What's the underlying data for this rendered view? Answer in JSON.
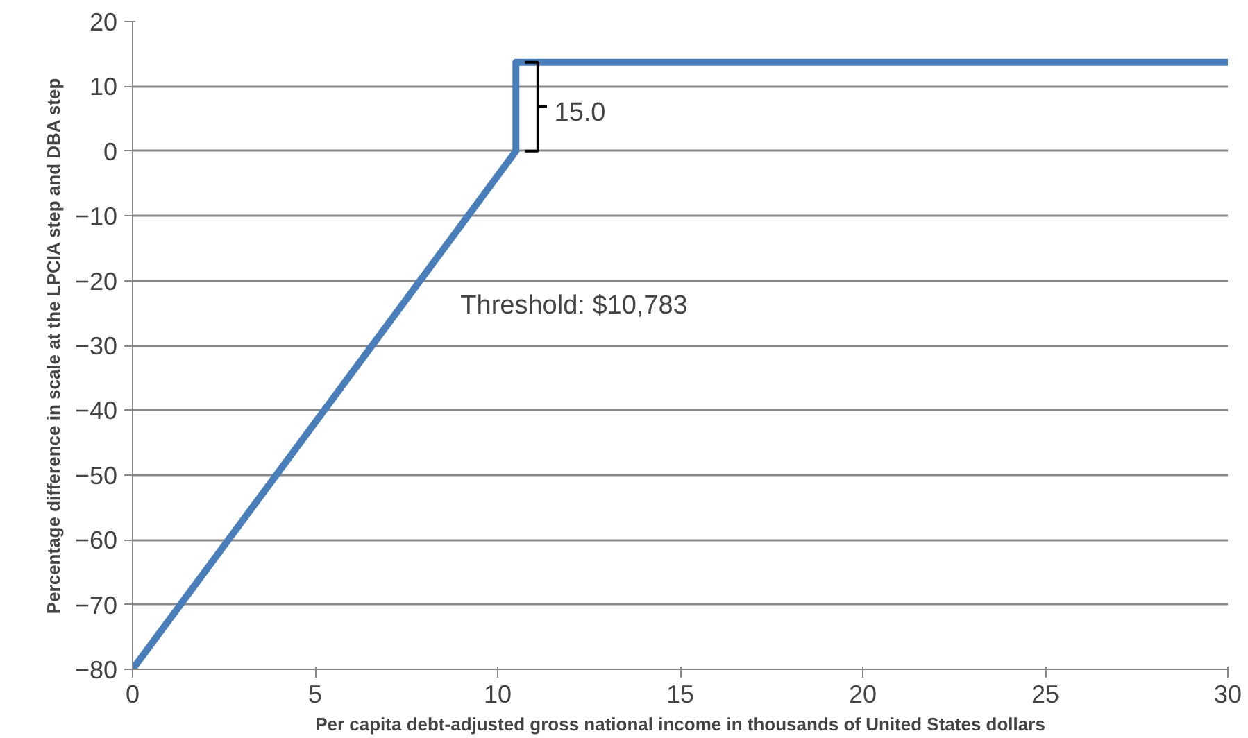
{
  "chart_data": {
    "type": "line",
    "xlabel": "Per capita debt-adjusted gross national income in thousands of United States dollars",
    "ylabel": "Percentage difference in scale at the LPCIA step and DBA step",
    "series": [
      {
        "color": "#4a7ebb",
        "x": [
          0,
          10.5,
          10.5,
          30
        ],
        "values": [
          -80,
          0,
          13.7,
          13.7
        ]
      }
    ],
    "xlim": [
      0,
      30
    ],
    "ylim": [
      -80,
      20
    ],
    "xticks": [
      0,
      5,
      10,
      15,
      20,
      25,
      30
    ],
    "yticks": [
      -80,
      -70,
      -60,
      -50,
      -40,
      -30,
      -20,
      -10,
      0,
      10,
      20
    ],
    "grid": "y",
    "annotations": [
      "15.0",
      "Threshold: $10,783"
    ]
  }
}
